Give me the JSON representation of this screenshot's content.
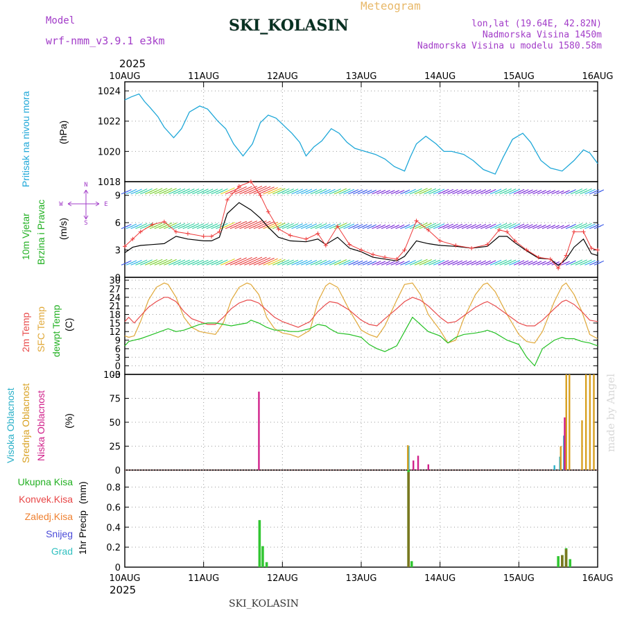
{
  "header": {
    "model_label": "Model",
    "model_name": "wrf-nmm_v3.9.1 e3km",
    "station": "SKI_KOLASIN",
    "title": "Meteogram",
    "lonlat": "lon,lat (19.64E, 42.82N)",
    "elevation": "Nadmorska Visina 1450m",
    "model_elevation": "Nadmorska Visina u modelu 1580.58m",
    "year_top": "2025",
    "year_bottom": "2025",
    "footer_station": "SKI_KOLASIN",
    "watermark": "made by Angel"
  },
  "colors": {
    "pressure": "#1ea7d8",
    "wind_black": "#000000",
    "gust": "#ee3a3a",
    "t2m": "#e84a4a",
    "sfc": "#e0a838",
    "dewpt": "#22c022",
    "high_cloud": "#2ab0c8",
    "mid_cloud": "#d8a020",
    "low_cloud": "#d0208a",
    "total_precip": "#33c633",
    "conv_precip": "#e84545",
    "frozen": "#ef8030",
    "snow": "#4a4ad8",
    "graupel": "#30c0c0",
    "precip_dark": "#7a7820"
  },
  "chart_data": [
    {
      "type": "line",
      "id": "pressure",
      "ylabel": "Pritisak na nivou mora",
      "unit": "(hPa)",
      "categories": [
        "10AUG",
        "11AUG",
        "12AUG",
        "13AUG",
        "14AUG",
        "15AUG",
        "16AUG"
      ],
      "ylim": [
        1018,
        1024.6
      ],
      "yticks": [
        "1018",
        "1020",
        "1022",
        "1024"
      ],
      "series": [
        {
          "name": "pressure",
          "x": [
            0,
            0.08,
            0.18,
            0.25,
            0.32,
            0.42,
            0.5,
            0.62,
            0.72,
            0.82,
            0.95,
            1.05,
            1.18,
            1.28,
            1.38,
            1.5,
            1.62,
            1.72,
            1.82,
            1.92,
            2.02,
            2.12,
            2.22,
            2.3,
            2.4,
            2.5,
            2.62,
            2.72,
            2.82,
            2.92,
            3.05,
            3.18,
            3.3,
            3.42,
            3.55,
            3.62,
            3.7,
            3.82,
            3.95,
            4.05,
            4.15,
            4.3,
            4.42,
            4.55,
            4.7,
            4.8,
            4.92,
            5.05,
            5.15,
            5.28,
            5.4,
            5.55,
            5.7,
            5.82,
            5.9,
            6.0
          ],
          "values": [
            1023.4,
            1023.6,
            1023.8,
            1023.3,
            1022.9,
            1022.3,
            1021.6,
            1020.9,
            1021.5,
            1022.6,
            1023.0,
            1022.8,
            1022.0,
            1021.5,
            1020.5,
            1019.7,
            1020.5,
            1021.9,
            1022.4,
            1022.2,
            1021.7,
            1021.2,
            1020.6,
            1019.7,
            1020.3,
            1020.7,
            1021.5,
            1021.2,
            1020.6,
            1020.2,
            1020.0,
            1019.8,
            1019.5,
            1019.0,
            1018.7,
            1019.6,
            1020.5,
            1021.0,
            1020.5,
            1020.0,
            1020.0,
            1019.8,
            1019.4,
            1018.8,
            1018.5,
            1019.6,
            1020.8,
            1021.2,
            1020.6,
            1019.4,
            1018.9,
            1018.7,
            1019.4,
            1020.1,
            1019.9,
            1019.2
          ]
        }
      ]
    },
    {
      "type": "line",
      "id": "wind",
      "ylabel": "10m Vjetar",
      "ylabel2": "Brzina i Pravac",
      "unit": "(m/s)",
      "compass": [
        "N",
        "W",
        "E",
        "S"
      ],
      "ylim": [
        0,
        10.5
      ],
      "yticks": [
        "0",
        "3",
        "6",
        "9"
      ],
      "barb_rows": [
        1.5,
        5.5,
        9.3
      ],
      "series": [
        {
          "name": "wind speed",
          "x": [
            0,
            0.1,
            0.2,
            0.35,
            0.5,
            0.65,
            0.8,
            1.0,
            1.1,
            1.2,
            1.3,
            1.45,
            1.6,
            1.72,
            1.82,
            1.95,
            2.1,
            2.3,
            2.45,
            2.55,
            2.7,
            2.85,
            3.0,
            3.15,
            3.3,
            3.45,
            3.55,
            3.7,
            3.85,
            4.0,
            4.2,
            4.4,
            4.6,
            4.75,
            4.85,
            4.95,
            5.1,
            5.25,
            5.4,
            5.5,
            5.6,
            5.7,
            5.82,
            5.92,
            6.0
          ],
          "values": [
            2.7,
            3.3,
            3.5,
            3.6,
            3.7,
            4.5,
            4.2,
            4.0,
            4.0,
            4.4,
            7.0,
            8.2,
            7.4,
            6.5,
            5.5,
            4.4,
            4.0,
            3.9,
            4.2,
            3.6,
            4.4,
            3.2,
            2.8,
            2.2,
            2.0,
            1.8,
            2.3,
            4.0,
            3.7,
            3.5,
            3.4,
            3.2,
            3.4,
            4.5,
            4.5,
            3.8,
            2.9,
            2.1,
            2.0,
            1.3,
            2.0,
            3.3,
            4.2,
            2.6,
            2.4
          ]
        },
        {
          "name": "gusts",
          "x": [
            0,
            0.1,
            0.2,
            0.35,
            0.5,
            0.65,
            0.8,
            1.0,
            1.1,
            1.2,
            1.3,
            1.45,
            1.6,
            1.72,
            1.82,
            1.95,
            2.1,
            2.3,
            2.45,
            2.55,
            2.7,
            2.85,
            3.0,
            3.15,
            3.3,
            3.45,
            3.55,
            3.7,
            3.85,
            4.0,
            4.2,
            4.4,
            4.6,
            4.75,
            4.85,
            4.95,
            5.1,
            5.25,
            5.4,
            5.5,
            5.6,
            5.7,
            5.82,
            5.92,
            6.0
          ],
          "values": [
            3.4,
            4.2,
            5.0,
            5.8,
            6.1,
            5.0,
            4.8,
            4.5,
            4.5,
            5.0,
            8.5,
            10.0,
            10.5,
            9.0,
            7.2,
            5.3,
            4.6,
            4.2,
            4.8,
            3.5,
            5.6,
            3.6,
            3.0,
            2.5,
            2.2,
            2.0,
            3.0,
            6.2,
            5.2,
            4.0,
            3.5,
            3.2,
            3.6,
            5.2,
            5.0,
            4.0,
            3.0,
            2.2,
            2.0,
            1.0,
            2.4,
            5.0,
            5.0,
            3.2,
            3.0
          ]
        }
      ]
    },
    {
      "type": "line",
      "id": "temperature",
      "ylabels": [
        "2m Temp",
        "SFC Temp",
        "dewpt Temp"
      ],
      "unit": "(C)",
      "ylim": [
        -3,
        31
      ],
      "yticks": [
        "-3",
        "0",
        "3",
        "6",
        "9",
        "12",
        "15",
        "18",
        "21",
        "24",
        "27",
        "30"
      ],
      "series": [
        {
          "name": "2m Temp",
          "x": [
            0,
            0.05,
            0.12,
            0.2,
            0.3,
            0.4,
            0.5,
            0.55,
            0.65,
            0.75,
            0.85,
            0.95,
            1.05,
            1.15,
            1.25,
            1.35,
            1.45,
            1.55,
            1.6,
            1.7,
            1.8,
            1.9,
            2.0,
            2.1,
            2.2,
            2.35,
            2.45,
            2.55,
            2.6,
            2.7,
            2.85,
            3.0,
            3.1,
            3.2,
            3.3,
            3.45,
            3.55,
            3.65,
            3.75,
            3.85,
            4.0,
            4.1,
            4.2,
            4.3,
            4.45,
            4.55,
            4.6,
            4.7,
            4.85,
            5.0,
            5.1,
            5.2,
            5.3,
            5.45,
            5.55,
            5.6,
            5.7,
            5.8,
            5.9,
            6.0
          ],
          "values": [
            15.5,
            17.0,
            15.0,
            17.5,
            20.5,
            22.5,
            24.0,
            24.0,
            22.5,
            19.0,
            16.5,
            15.5,
            14.5,
            14.5,
            17.0,
            20.0,
            22.0,
            23.0,
            23.0,
            22.0,
            19.5,
            17.0,
            15.5,
            14.5,
            13.5,
            15.5,
            19.0,
            21.5,
            22.5,
            22.0,
            19.5,
            16.0,
            14.5,
            14.0,
            16.5,
            20.0,
            22.5,
            24.0,
            23.0,
            21.0,
            17.0,
            15.0,
            15.5,
            17.5,
            20.5,
            22.0,
            22.5,
            21.0,
            18.0,
            15.0,
            14.0,
            14.0,
            16.0,
            20.0,
            22.5,
            23.0,
            21.5,
            19.0,
            16.0,
            15.5
          ]
        },
        {
          "name": "SFC Temp",
          "x": [
            0,
            0.05,
            0.12,
            0.2,
            0.3,
            0.4,
            0.5,
            0.55,
            0.65,
            0.75,
            0.85,
            0.95,
            1.05,
            1.15,
            1.25,
            1.35,
            1.45,
            1.55,
            1.6,
            1.7,
            1.8,
            1.9,
            2.0,
            2.1,
            2.2,
            2.35,
            2.45,
            2.55,
            2.6,
            2.7,
            2.85,
            3.0,
            3.1,
            3.2,
            3.3,
            3.45,
            3.55,
            3.65,
            3.75,
            3.85,
            4.0,
            4.1,
            4.2,
            4.3,
            4.45,
            4.55,
            4.6,
            4.7,
            4.85,
            5.0,
            5.1,
            5.2,
            5.3,
            5.45,
            5.55,
            5.6,
            5.7,
            5.8,
            5.9,
            6.0
          ],
          "values": [
            10.5,
            10.0,
            10.5,
            15.5,
            23.0,
            27.5,
            29.0,
            28.5,
            24.0,
            17.0,
            13.5,
            12.0,
            11.5,
            11.0,
            15.0,
            23.0,
            27.5,
            29.0,
            28.5,
            25.0,
            17.0,
            13.0,
            11.5,
            11.0,
            10.0,
            12.5,
            22.5,
            28.0,
            29.0,
            27.5,
            19.5,
            12.5,
            11.0,
            10.0,
            14.0,
            23.0,
            28.5,
            29.0,
            25.0,
            18.0,
            12.5,
            8.0,
            9.0,
            16.5,
            25.0,
            28.5,
            29.0,
            26.0,
            18.0,
            11.0,
            8.5,
            8.0,
            12.0,
            22.5,
            28.0,
            29.0,
            25.0,
            19.0,
            11.0,
            9.5
          ]
        },
        {
          "name": "dewpt Temp",
          "x": [
            0,
            0.05,
            0.12,
            0.2,
            0.3,
            0.4,
            0.5,
            0.55,
            0.65,
            0.75,
            0.85,
            0.95,
            1.05,
            1.15,
            1.25,
            1.35,
            1.45,
            1.55,
            1.6,
            1.7,
            1.8,
            1.9,
            2.0,
            2.1,
            2.2,
            2.35,
            2.45,
            2.55,
            2.6,
            2.7,
            2.85,
            3.0,
            3.1,
            3.2,
            3.3,
            3.45,
            3.55,
            3.65,
            3.75,
            3.85,
            4.0,
            4.1,
            4.2,
            4.3,
            4.45,
            4.55,
            4.6,
            4.7,
            4.85,
            5.0,
            5.1,
            5.2,
            5.3,
            5.45,
            5.55,
            5.6,
            5.7,
            5.8,
            5.9,
            6.0
          ],
          "values": [
            7.0,
            8.5,
            9.0,
            9.5,
            10.5,
            11.5,
            12.5,
            13.0,
            12.0,
            12.5,
            13.5,
            14.5,
            15.0,
            15.0,
            14.5,
            14.0,
            14.5,
            15.0,
            16.0,
            15.0,
            13.5,
            12.5,
            12.5,
            12.0,
            12.0,
            13.0,
            14.5,
            14.0,
            13.0,
            11.5,
            11.0,
            10.0,
            7.5,
            6.0,
            5.0,
            7.0,
            12.0,
            17.0,
            14.5,
            12.0,
            10.5,
            8.0,
            10.0,
            11.0,
            11.5,
            12.0,
            12.5,
            11.5,
            9.0,
            7.5,
            3.0,
            0.0,
            6.0,
            9.0,
            10.0,
            9.5,
            9.5,
            8.5,
            8.0,
            7.0
          ]
        }
      ]
    },
    {
      "type": "bar",
      "id": "clouds",
      "ylabels": [
        "Visoka Oblacnost",
        "Srednja Oblacnost",
        "Niska Oblacnost"
      ],
      "unit": "(%)",
      "ylim": [
        0,
        100
      ],
      "yticks": [
        "0",
        "25",
        "50",
        "75",
        "100"
      ],
      "series": [
        {
          "name": "Visoka Oblacnost",
          "x": [
            3.6,
            5.45,
            5.52,
            5.57
          ],
          "values": [
            25,
            5,
            14,
            36
          ]
        },
        {
          "name": "Srednja Oblacnost",
          "x": [
            3.59,
            5.53,
            5.6,
            5.64,
            5.8,
            5.85,
            5.9,
            5.95
          ],
          "values": [
            26,
            25,
            100,
            100,
            52,
            100,
            100,
            100
          ]
        },
        {
          "name": "Niska Oblacnost",
          "x": [
            1.7,
            3.66,
            3.72,
            3.85,
            5.58
          ],
          "values": [
            82,
            10,
            15,
            6,
            55
          ]
        }
      ]
    },
    {
      "type": "bar",
      "id": "precip",
      "ylabels": [
        "Ukupna Kisa",
        "Konvek.Kisa",
        "Zaledj.Kisa",
        "Snijeg",
        "Grad"
      ],
      "ylabel": "1hr Precip",
      "unit": "(mm)",
      "ylim": [
        0,
        0.97
      ],
      "yticks": [
        "0",
        "0.2",
        "0.4",
        "0.6",
        "0.8"
      ],
      "categories": [
        "10AUG",
        "11AUG",
        "12AUG",
        "13AUG",
        "14AUG",
        "15AUG",
        "16AUG"
      ],
      "series": [
        {
          "name": "Ukupna Kisa",
          "x": [
            1.71,
            1.75,
            1.8,
            3.6,
            3.64,
            5.5,
            5.55,
            5.6,
            5.65
          ],
          "values": [
            0.47,
            0.21,
            0.05,
            0.97,
            0.06,
            0.11,
            0.12,
            0.19,
            0.08
          ]
        },
        {
          "name": "Konvek.Kisa",
          "x": [
            3.6,
            5.55,
            5.6
          ],
          "values": [
            0.95,
            0.12,
            0.18
          ]
        }
      ]
    }
  ]
}
